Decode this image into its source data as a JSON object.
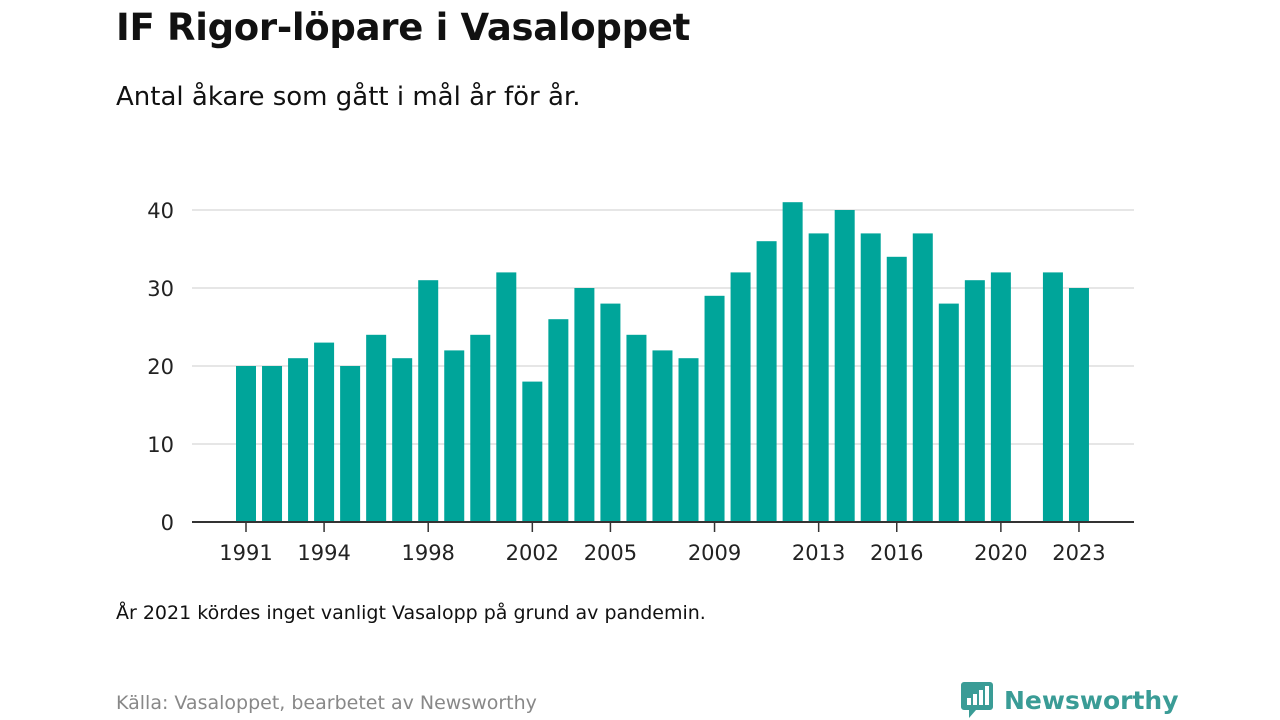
{
  "title": "IF Rigor-löpare i Vasaloppet",
  "subtitle": "Antal åkare som gått i mål år för år.",
  "note": "År 2021 kördes inget vanligt Vasalopp på grund av pandemin.",
  "source": "Källa: Vasaloppet, bearbetet av Newsworthy",
  "brand": {
    "name": "Newsworthy",
    "icon": "newsworthy-logo-icon",
    "color": "#3a9c96"
  },
  "chart_data": {
    "type": "bar",
    "bar_color": "#00a59a",
    "categories": [
      1991,
      1992,
      1993,
      1994,
      1995,
      1996,
      1997,
      1998,
      1999,
      2000,
      2001,
      2002,
      2003,
      2004,
      2005,
      2006,
      2007,
      2008,
      2009,
      2010,
      2011,
      2012,
      2013,
      2014,
      2015,
      2016,
      2017,
      2018,
      2019,
      2020,
      2021,
      2022,
      2023
    ],
    "values": [
      20,
      20,
      21,
      23,
      20,
      24,
      21,
      31,
      22,
      24,
      32,
      18,
      26,
      30,
      28,
      24,
      22,
      21,
      29,
      32,
      36,
      41,
      37,
      40,
      37,
      34,
      37,
      28,
      31,
      32,
      null,
      32,
      30
    ],
    "x_tick_labels": [
      "1991",
      "1994",
      "1998",
      "2002",
      "2005",
      "2009",
      "2013",
      "2016",
      "2020",
      "2023"
    ],
    "y_ticks": [
      0,
      10,
      20,
      30,
      40
    ],
    "ylim": [
      0,
      45
    ],
    "grid": true
  }
}
